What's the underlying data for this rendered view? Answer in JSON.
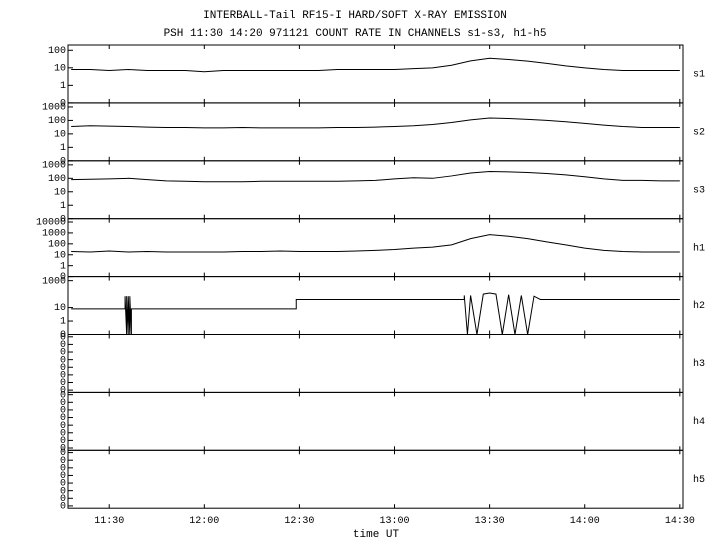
{
  "chart_data": {
    "type": "line",
    "title": "INTERBALL-Tail RF15-I HARD/SOFT X-RAY EMISSION",
    "subtitle": "PSH 11:30 14:20 971121  COUNT RATE IN CHANNELS s1-s3, h1-h5",
    "x_label": "time UT",
    "xlim": [
      677,
      871
    ],
    "xticks": [
      {
        "value": 690,
        "label": "11:30"
      },
      {
        "value": 720,
        "label": "12:00"
      },
      {
        "value": 750,
        "label": "12:30"
      },
      {
        "value": 780,
        "label": "13:00"
      },
      {
        "value": 810,
        "label": "13:30"
      },
      {
        "value": 840,
        "label": "14:00"
      },
      {
        "value": 870,
        "label": "14:30"
      }
    ],
    "x": [
      678,
      684,
      690,
      696,
      702,
      708,
      714,
      720,
      726,
      732,
      738,
      744,
      750,
      756,
      762,
      768,
      774,
      780,
      786,
      792,
      798,
      804,
      810,
      816,
      822,
      828,
      834,
      840,
      846,
      852,
      858,
      864,
      870
    ],
    "log_scale": true,
    "series": [
      {
        "name": "s1",
        "color": "#000000",
        "ylim": [
          0,
          200
        ],
        "yticks": [
          100,
          10,
          1,
          0
        ],
        "values": [
          8,
          8,
          7,
          8,
          7,
          7,
          7,
          6,
          7,
          7,
          7,
          7,
          7,
          7,
          8,
          8,
          8,
          8,
          9,
          10,
          14,
          25,
          35,
          30,
          24,
          18,
          13,
          10,
          8,
          7,
          7,
          7,
          7
        ]
      },
      {
        "name": "s2",
        "color": "#000000",
        "ylim": [
          0,
          2000
        ],
        "yticks": [
          1000,
          100,
          10,
          1,
          0
        ],
        "values": [
          35,
          40,
          38,
          35,
          32,
          30,
          30,
          28,
          28,
          30,
          28,
          28,
          28,
          28,
          30,
          30,
          32,
          35,
          40,
          50,
          70,
          110,
          150,
          140,
          120,
          100,
          80,
          60,
          45,
          35,
          30,
          30,
          30
        ]
      },
      {
        "name": "s3",
        "color": "#000000",
        "ylim": [
          0,
          2000
        ],
        "yticks": [
          1000,
          100,
          10,
          1,
          0
        ],
        "values": [
          80,
          85,
          90,
          100,
          80,
          65,
          60,
          55,
          55,
          55,
          60,
          60,
          60,
          60,
          60,
          65,
          70,
          90,
          110,
          100,
          150,
          250,
          320,
          300,
          270,
          230,
          180,
          130,
          90,
          70,
          70,
          65,
          65
        ]
      },
      {
        "name": "h1",
        "color": "#000000",
        "ylim": [
          0,
          20000
        ],
        "yticks": [
          10000,
          1000,
          100,
          10,
          1,
          0
        ],
        "values": [
          20,
          18,
          22,
          18,
          20,
          18,
          18,
          18,
          18,
          20,
          20,
          22,
          20,
          20,
          20,
          22,
          25,
          30,
          40,
          50,
          80,
          300,
          700,
          500,
          300,
          150,
          80,
          40,
          25,
          20,
          18,
          18,
          18
        ]
      },
      {
        "name": "h2",
        "color": "#000000",
        "ylim": [
          0,
          2000
        ],
        "yticks": [
          1000,
          10,
          1,
          0
        ],
        "x": [
          678,
          695,
          695,
          695.5,
          695.5,
          696,
          696,
          696.5,
          696.5,
          697,
          697,
          749,
          749,
          802,
          802,
          803,
          804,
          806,
          808,
          810,
          812,
          814,
          816,
          818,
          820,
          822,
          824,
          826,
          870
        ],
        "values": [
          8,
          8,
          70,
          0,
          70,
          0,
          70,
          0,
          70,
          0,
          8,
          8,
          40,
          40,
          80,
          0,
          80,
          0,
          100,
          120,
          100,
          0,
          90,
          0,
          80,
          0,
          70,
          40,
          40
        ]
      },
      {
        "name": "h3",
        "color": "#000000",
        "ylim": [
          5e-09,
          0.2
        ],
        "yticks": [
          {
            "value": 0.1,
            "label": "0"
          },
          {
            "value": 0.01,
            "label": "0"
          },
          {
            "value": 0.001,
            "label": "0"
          },
          {
            "value": 0.0001,
            "label": "0"
          },
          {
            "value": 1e-05,
            "label": "0"
          },
          {
            "value": 1e-06,
            "label": "0"
          },
          {
            "value": 1e-07,
            "label": "0"
          },
          {
            "value": 1e-08,
            "label": "0"
          }
        ]
      },
      {
        "name": "h4",
        "color": "#000000",
        "ylim": [
          5e-09,
          0.2
        ],
        "yticks": [
          {
            "value": 0.1,
            "label": "0"
          },
          {
            "value": 0.01,
            "label": "0"
          },
          {
            "value": 0.001,
            "label": "0"
          },
          {
            "value": 0.0001,
            "label": "0"
          },
          {
            "value": 1e-05,
            "label": "0"
          },
          {
            "value": 1e-06,
            "label": "0"
          },
          {
            "value": 1e-07,
            "label": "0"
          },
          {
            "value": 1e-08,
            "label": "0"
          }
        ]
      },
      {
        "name": "h5",
        "color": "#000000",
        "ylim": [
          5e-09,
          0.2
        ],
        "yticks": [
          {
            "value": 0.1,
            "label": "0"
          },
          {
            "value": 0.01,
            "label": "0"
          },
          {
            "value": 0.001,
            "label": "0"
          },
          {
            "value": 0.0001,
            "label": "0"
          },
          {
            "value": 1e-05,
            "label": "0"
          },
          {
            "value": 1e-06,
            "label": "0"
          },
          {
            "value": 1e-07,
            "label": "0"
          },
          {
            "value": 1e-08,
            "label": "0"
          }
        ]
      }
    ]
  }
}
